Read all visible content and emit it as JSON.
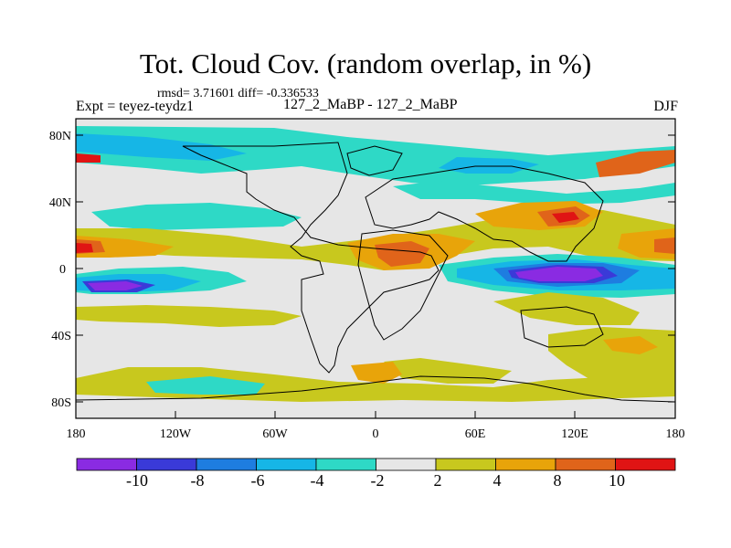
{
  "title": "Tot. Cloud Cov. (random overlap, in %)",
  "stats_text": "rmsd= 3.71601 diff= -0.336533",
  "expt_label": "Expt = teyez-teydz1",
  "comparison_label": "127_2_MaBP - 127_2_MaBP",
  "season_label": "DJF",
  "colors": {
    "neutral": "#e6e6e6",
    "levels": [
      "#8a2be2",
      "#3a3ad8",
      "#1e7de0",
      "#16b6e6",
      "#2ed9c6",
      "#e6e6e6",
      "#c8c81e",
      "#e8a40a",
      "#e0641a",
      "#e01414"
    ]
  },
  "map": {
    "lat_ticks": [
      "80N",
      "40N",
      "0",
      "40S",
      "80S"
    ],
    "lon_ticks": [
      "180",
      "120W",
      "60W",
      "0",
      "60E",
      "120E",
      "180"
    ]
  },
  "colorbar": {
    "labels": [
      "-10",
      "-8",
      "-6",
      "-4",
      "-2",
      "2",
      "4",
      "8",
      "10"
    ]
  }
}
